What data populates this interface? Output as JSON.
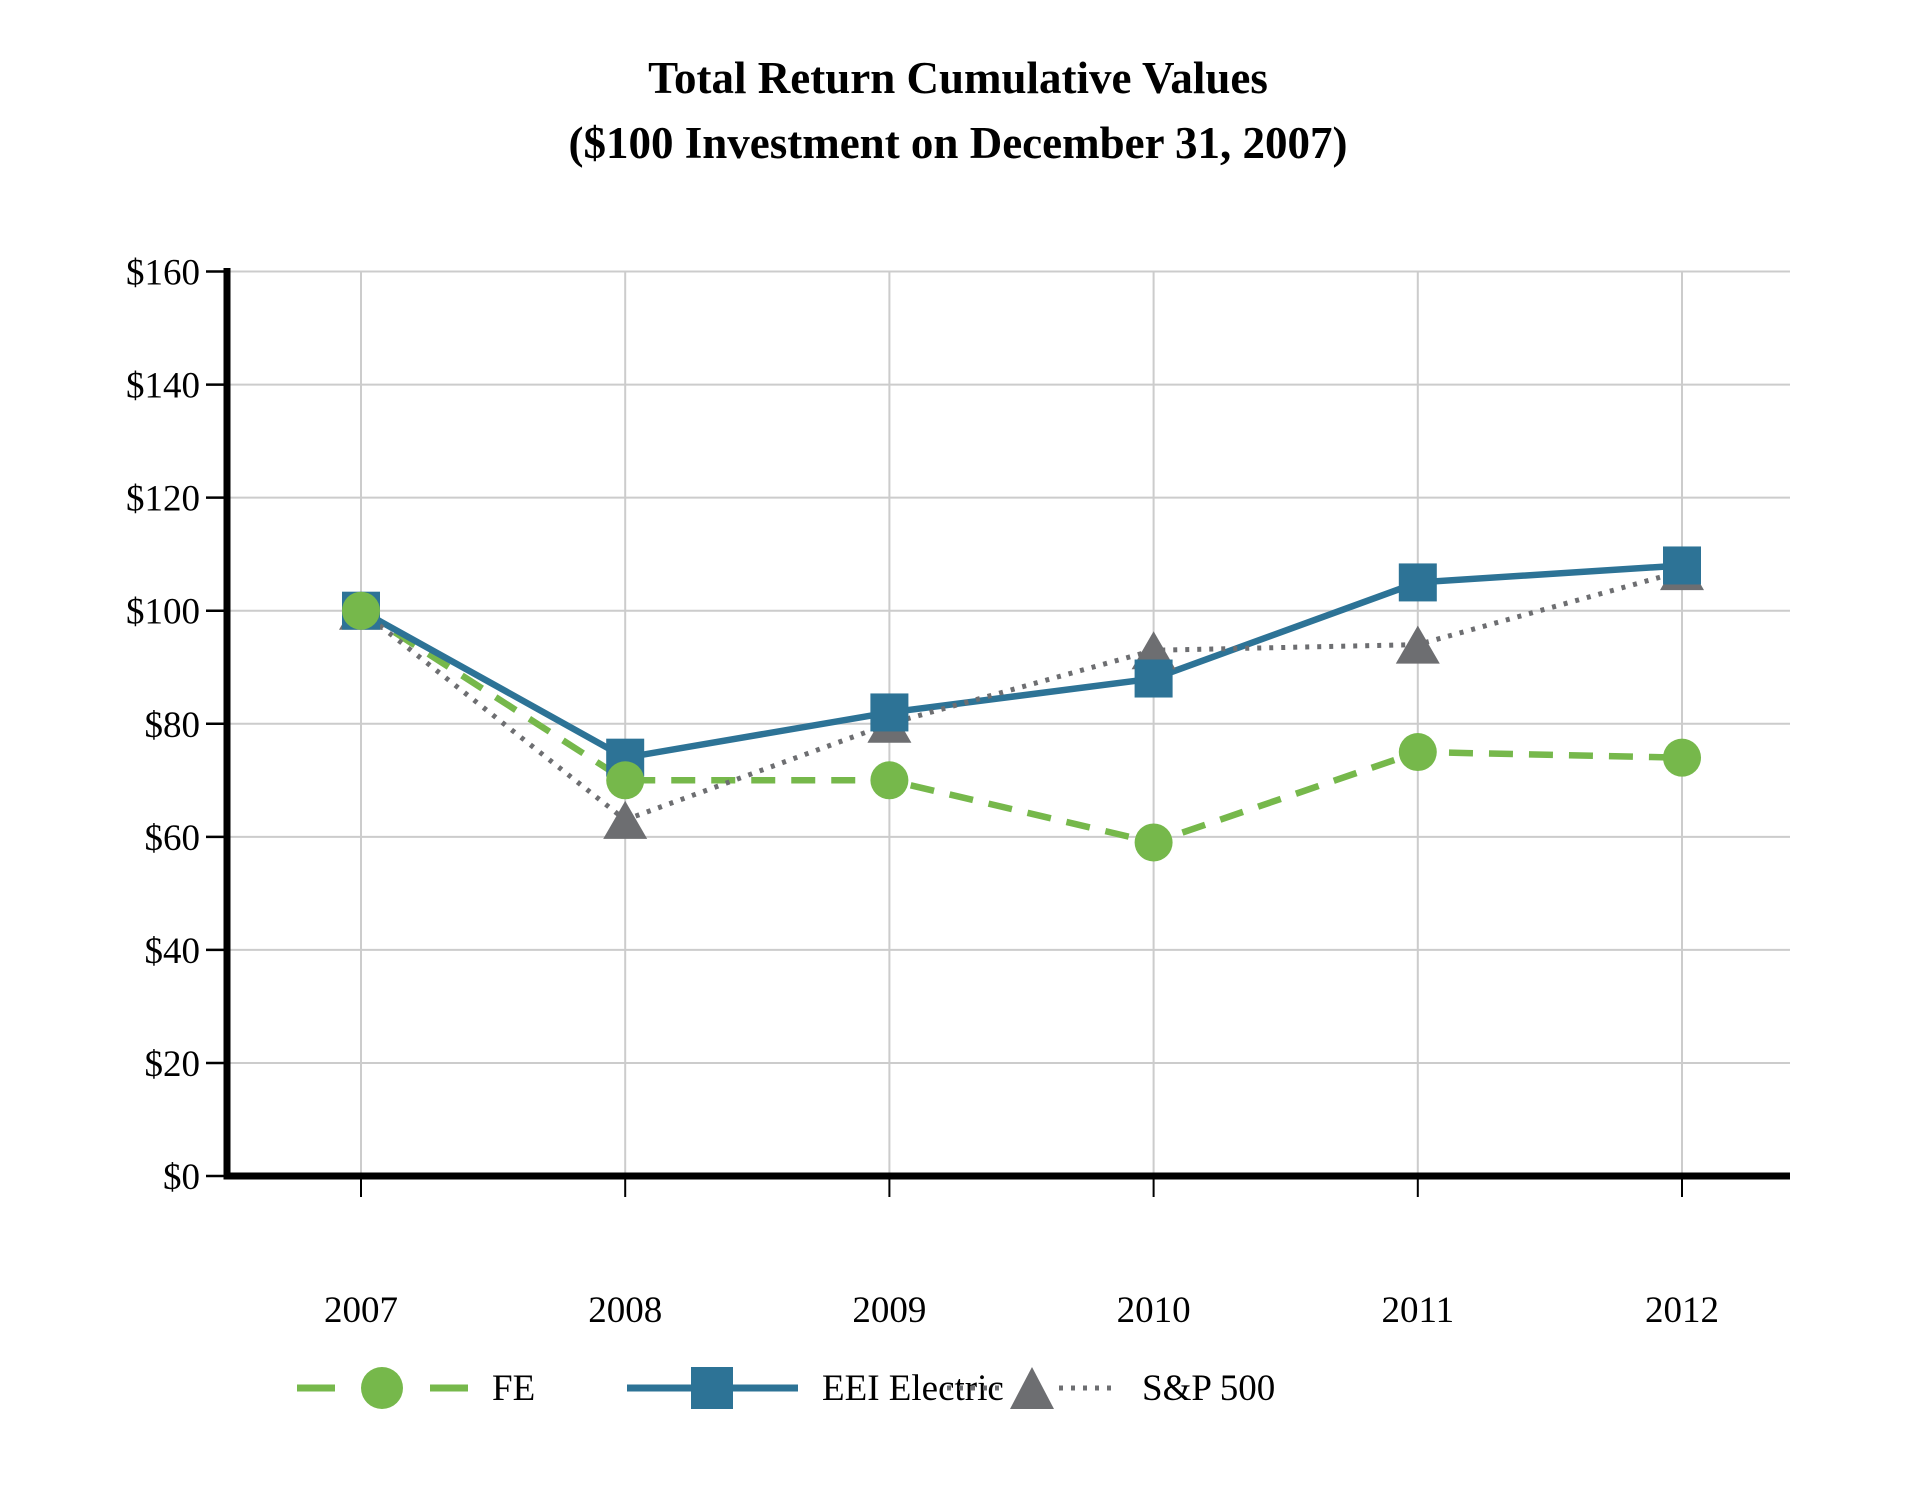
{
  "title": {
    "line1": "Total Return Cumulative Values",
    "line2": "($100 Investment on December 31, 2007)"
  },
  "chart_data": {
    "type": "line",
    "categories": [
      "2007",
      "2008",
      "2009",
      "2010",
      "2011",
      "2012"
    ],
    "series": [
      {
        "name": "FE",
        "values": [
          100,
          70,
          70,
          59,
          75,
          74
        ],
        "color": "#76b84b",
        "marker": "circle",
        "line_style": "dashed"
      },
      {
        "name": "EEI Electric",
        "values": [
          100,
          74,
          82,
          88,
          105,
          108
        ],
        "color": "#2d7396",
        "marker": "square",
        "line_style": "solid"
      },
      {
        "name": "S&P 500",
        "values": [
          100,
          63,
          80,
          93,
          94,
          107
        ],
        "color": "#6d6e71",
        "marker": "triangle",
        "line_style": "dotted"
      }
    ],
    "ylim": [
      0,
      160
    ],
    "ytick_step": 20,
    "ytick_labels": [
      "$0",
      "$20",
      "$40",
      "$60",
      "$80",
      "$100",
      "$120",
      "$140",
      "$160"
    ],
    "grid": true,
    "legend_position": "bottom",
    "colors": {
      "gridline": "#cccccc",
      "axis": "#000000",
      "tick_label": "#000000"
    }
  },
  "legend": {
    "items": [
      {
        "label": "FE"
      },
      {
        "label": "EEI Electric"
      },
      {
        "label": "S&P 500"
      }
    ]
  }
}
